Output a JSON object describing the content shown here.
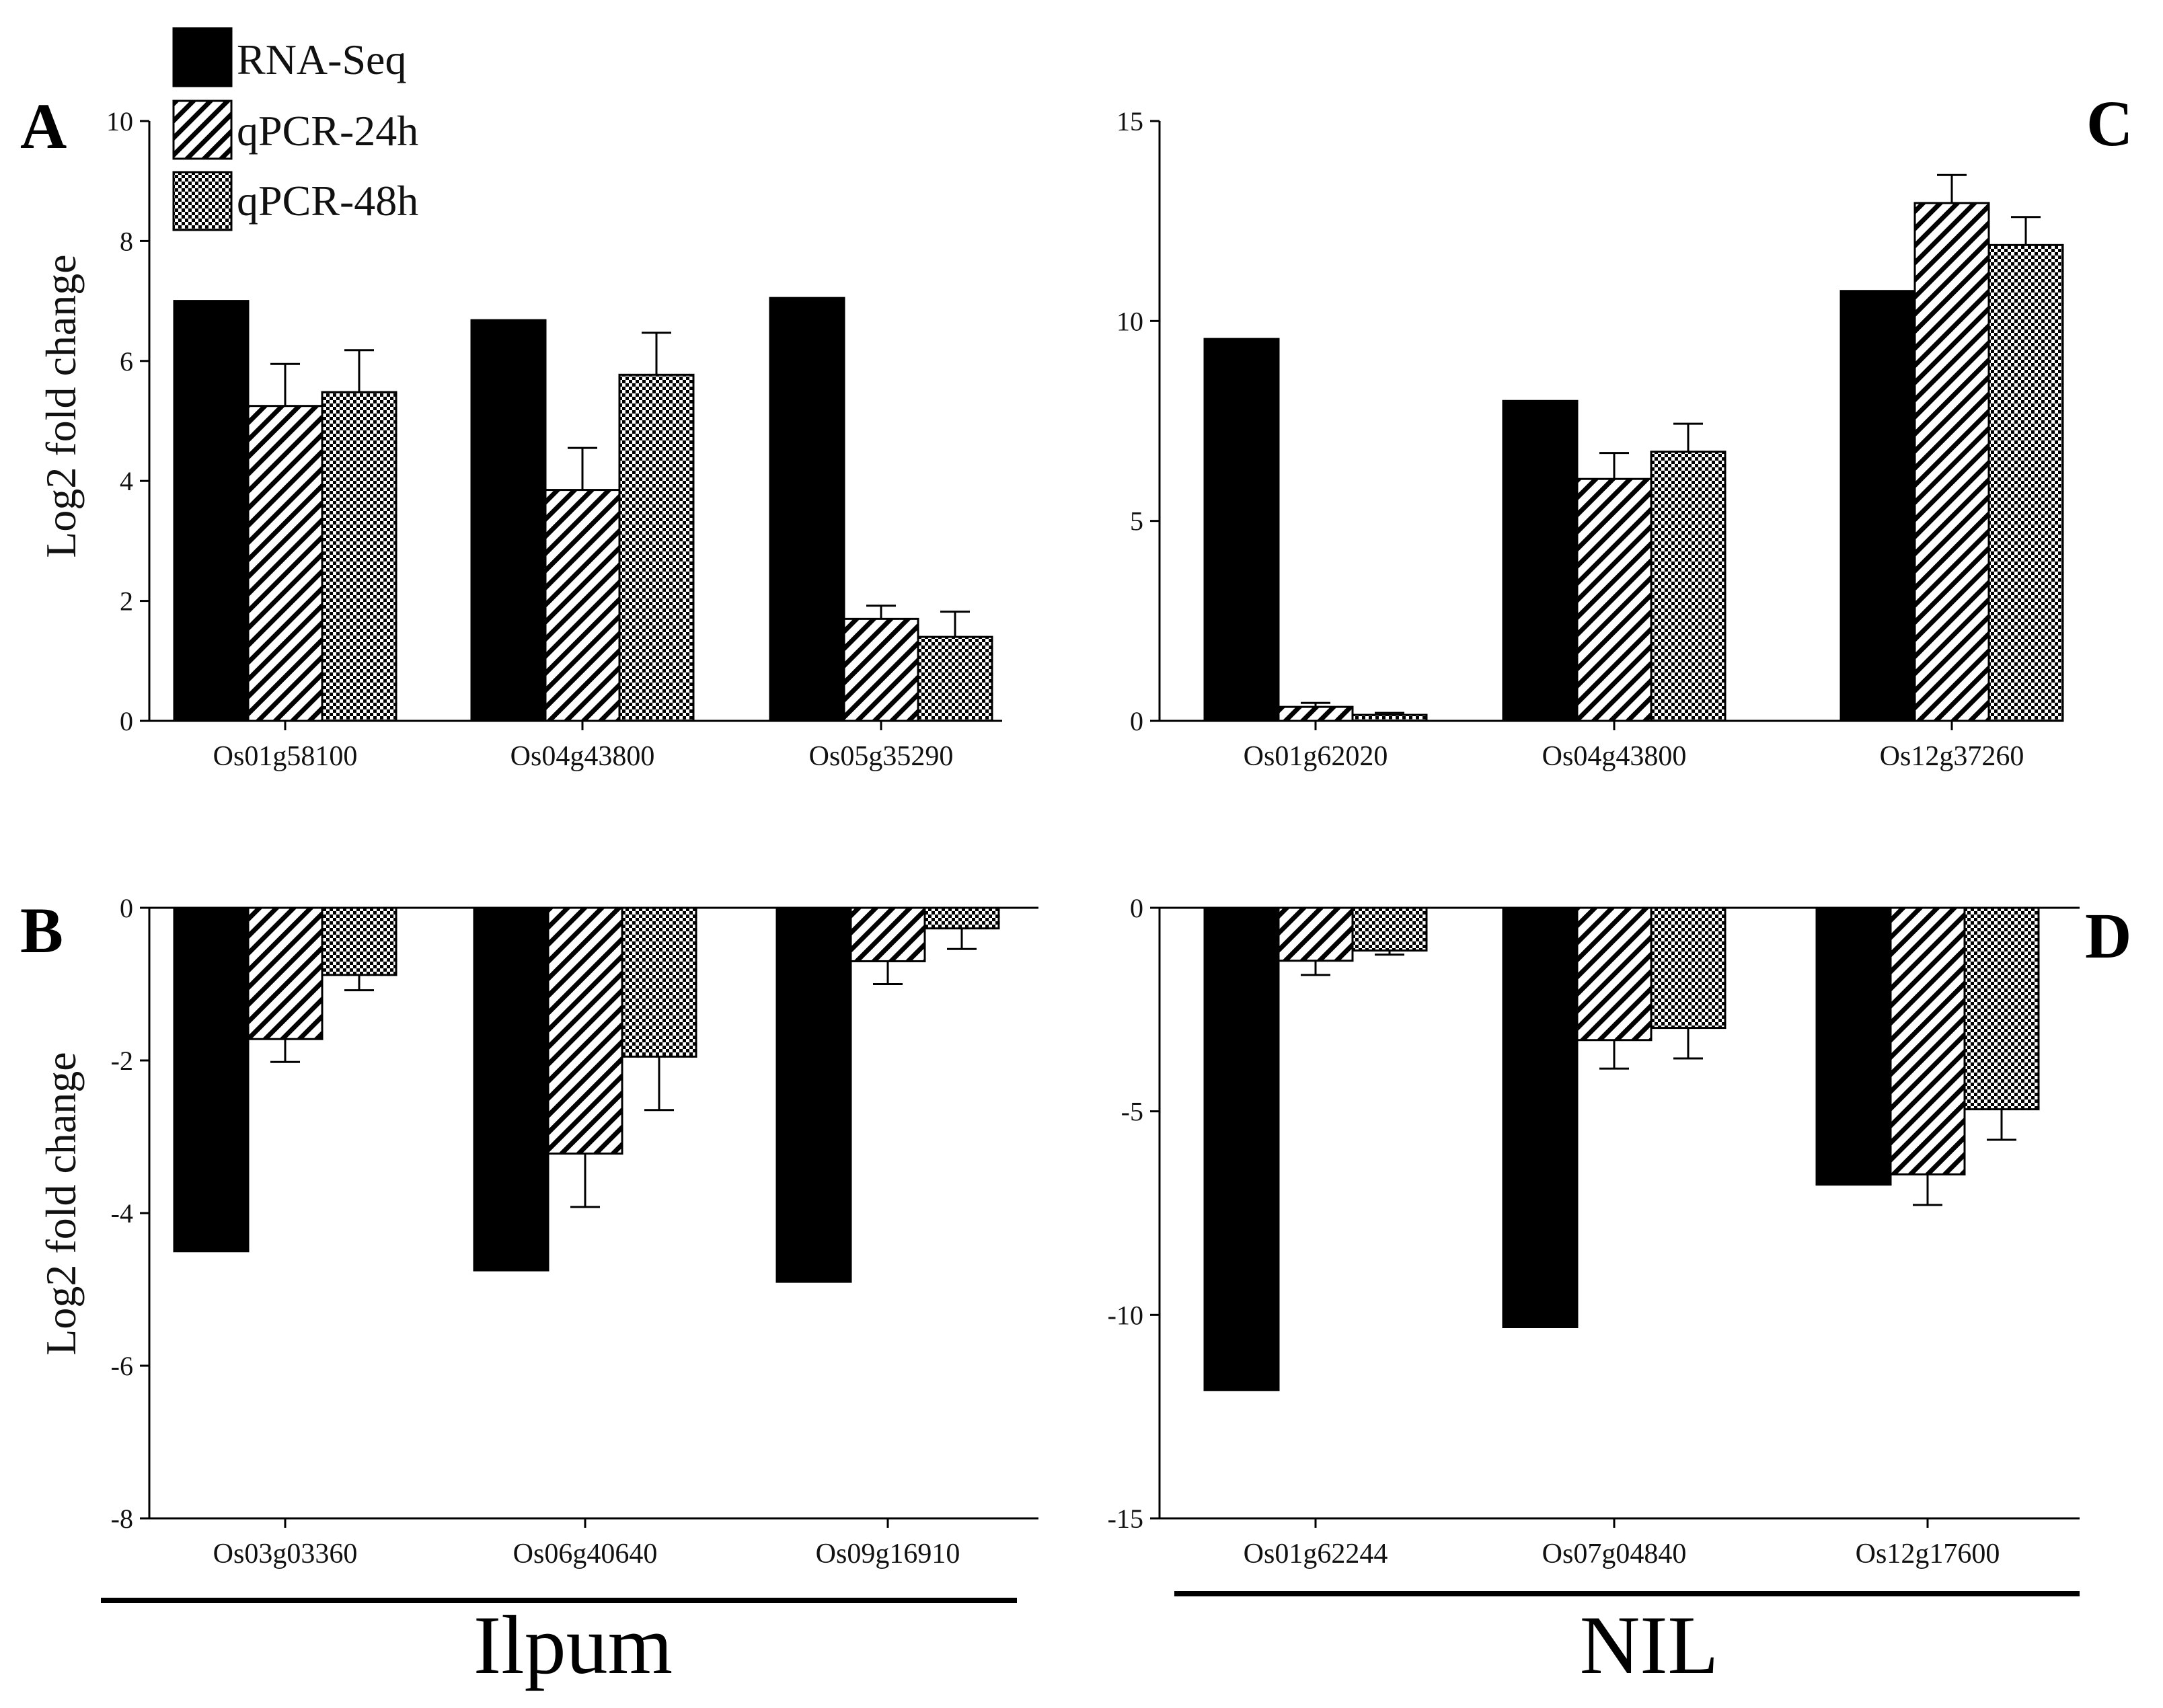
{
  "legend": {
    "items": [
      {
        "label": "RNA-Seq",
        "pattern": "solid"
      },
      {
        "label": "qPCR-24h",
        "pattern": "hatch"
      },
      {
        "label": "qPCR-48h",
        "pattern": "checker"
      }
    ]
  },
  "groups": {
    "left": "Ilpum",
    "right": "NIL"
  },
  "colors": {
    "bar": "#000000",
    "axis": "#000000",
    "background": "#ffffff"
  },
  "chart_data": [
    {
      "panel": "A",
      "type": "bar",
      "ylabel": "Log2 fold change",
      "ylim": [
        0,
        10
      ],
      "yticks": [
        0,
        2,
        4,
        6,
        8,
        10
      ],
      "categories": [
        "Os01g58100",
        "Os04g43800",
        "Os05g35290"
      ],
      "series": [
        {
          "name": "RNA-Seq",
          "values": [
            7.0,
            6.68,
            7.05
          ],
          "errors": [
            0,
            0,
            0
          ]
        },
        {
          "name": "qPCR-24h",
          "values": [
            5.25,
            3.85,
            1.7
          ],
          "errors": [
            0.7,
            0.7,
            0.22
          ]
        },
        {
          "name": "qPCR-48h",
          "values": [
            5.48,
            5.77,
            1.4
          ],
          "errors": [
            0.7,
            0.7,
            0.42
          ]
        }
      ]
    },
    {
      "panel": "B",
      "type": "bar",
      "ylabel": "Log2 fold change",
      "ylim": [
        -8,
        0
      ],
      "yticks": [
        0,
        -2,
        -4,
        -6,
        -8
      ],
      "categories": [
        "Os03g03360",
        "Os06g40640",
        "Os09g16910"
      ],
      "series": [
        {
          "name": "RNA-Seq",
          "values": [
            -4.5,
            -4.75,
            -4.9
          ],
          "errors": [
            0,
            0,
            0
          ]
        },
        {
          "name": "qPCR-24h",
          "values": [
            -1.72,
            -3.22,
            -0.7
          ],
          "errors": [
            0.3,
            0.7,
            0.3
          ]
        },
        {
          "name": "qPCR-48h",
          "values": [
            -0.88,
            -1.95,
            -0.27
          ],
          "errors": [
            0.2,
            0.7,
            0.27
          ]
        }
      ]
    },
    {
      "panel": "C",
      "type": "bar",
      "ylabel": "",
      "ylim": [
        0,
        15
      ],
      "yticks": [
        0,
        5,
        10,
        15
      ],
      "categories": [
        "Os01g62020",
        "Os04g43800",
        "Os12g37260"
      ],
      "series": [
        {
          "name": "RNA-Seq",
          "values": [
            9.55,
            8.0,
            10.75
          ],
          "errors": [
            0,
            0,
            0
          ]
        },
        {
          "name": "qPCR-24h",
          "values": [
            0.35,
            6.05,
            12.95
          ],
          "errors": [
            0.1,
            0.65,
            0.7
          ]
        },
        {
          "name": "qPCR-48h",
          "values": [
            0.15,
            6.73,
            11.9
          ],
          "errors": [
            0.05,
            0.7,
            0.7
          ]
        }
      ]
    },
    {
      "panel": "D",
      "type": "bar",
      "ylabel": "",
      "ylim": [
        -15,
        0
      ],
      "yticks": [
        0,
        -5,
        -10,
        -15
      ],
      "categories": [
        "Os01g62244",
        "Os07g04840",
        "Os12g17600"
      ],
      "series": [
        {
          "name": "RNA-Seq",
          "values": [
            -11.85,
            -10.3,
            -6.8
          ],
          "errors": [
            0,
            0,
            0
          ]
        },
        {
          "name": "qPCR-24h",
          "values": [
            -1.3,
            -3.25,
            -6.55
          ],
          "errors": [
            0.35,
            0.7,
            0.75
          ]
        },
        {
          "name": "qPCR-48h",
          "values": [
            -1.05,
            -2.95,
            -4.95
          ],
          "errors": [
            0.1,
            0.75,
            0.75
          ]
        }
      ]
    }
  ]
}
